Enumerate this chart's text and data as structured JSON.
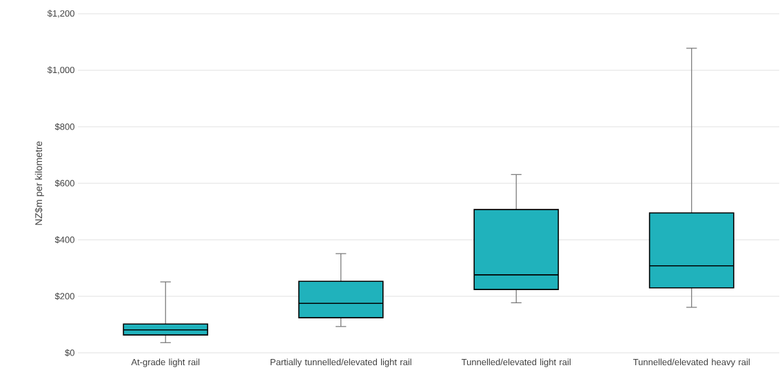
{
  "chart_data": {
    "type": "box",
    "ylabel": "NZ$m per kilometre",
    "categories": [
      "At-grade light rail",
      "Partially tunnelled/elevated light rail",
      "Tunnelled/elevated light rail",
      "Tunnelled/elevated heavy rail"
    ],
    "series": [
      {
        "color": "#20b2bc",
        "boxes": [
          {
            "low": 36,
            "q1": 63,
            "median": 81,
            "q3": 102,
            "high": 251
          },
          {
            "low": 93,
            "q1": 124,
            "median": 175,
            "q3": 253,
            "high": 351
          },
          {
            "low": 177,
            "q1": 224,
            "median": 276,
            "q3": 507,
            "high": 631
          },
          {
            "low": 161,
            "q1": 230,
            "median": 308,
            "q3": 495,
            "high": 1078
          }
        ]
      }
    ],
    "ylim": [
      0,
      1200
    ],
    "yticks": [
      {
        "value": 0,
        "label": "$0"
      },
      {
        "value": 200,
        "label": "$200"
      },
      {
        "value": 400,
        "label": "$400"
      },
      {
        "value": 600,
        "label": "$600"
      },
      {
        "value": 800,
        "label": "$800"
      },
      {
        "value": 1000,
        "label": "$1,000"
      },
      {
        "value": 1200,
        "label": "$1,200"
      }
    ],
    "grid": "y"
  }
}
